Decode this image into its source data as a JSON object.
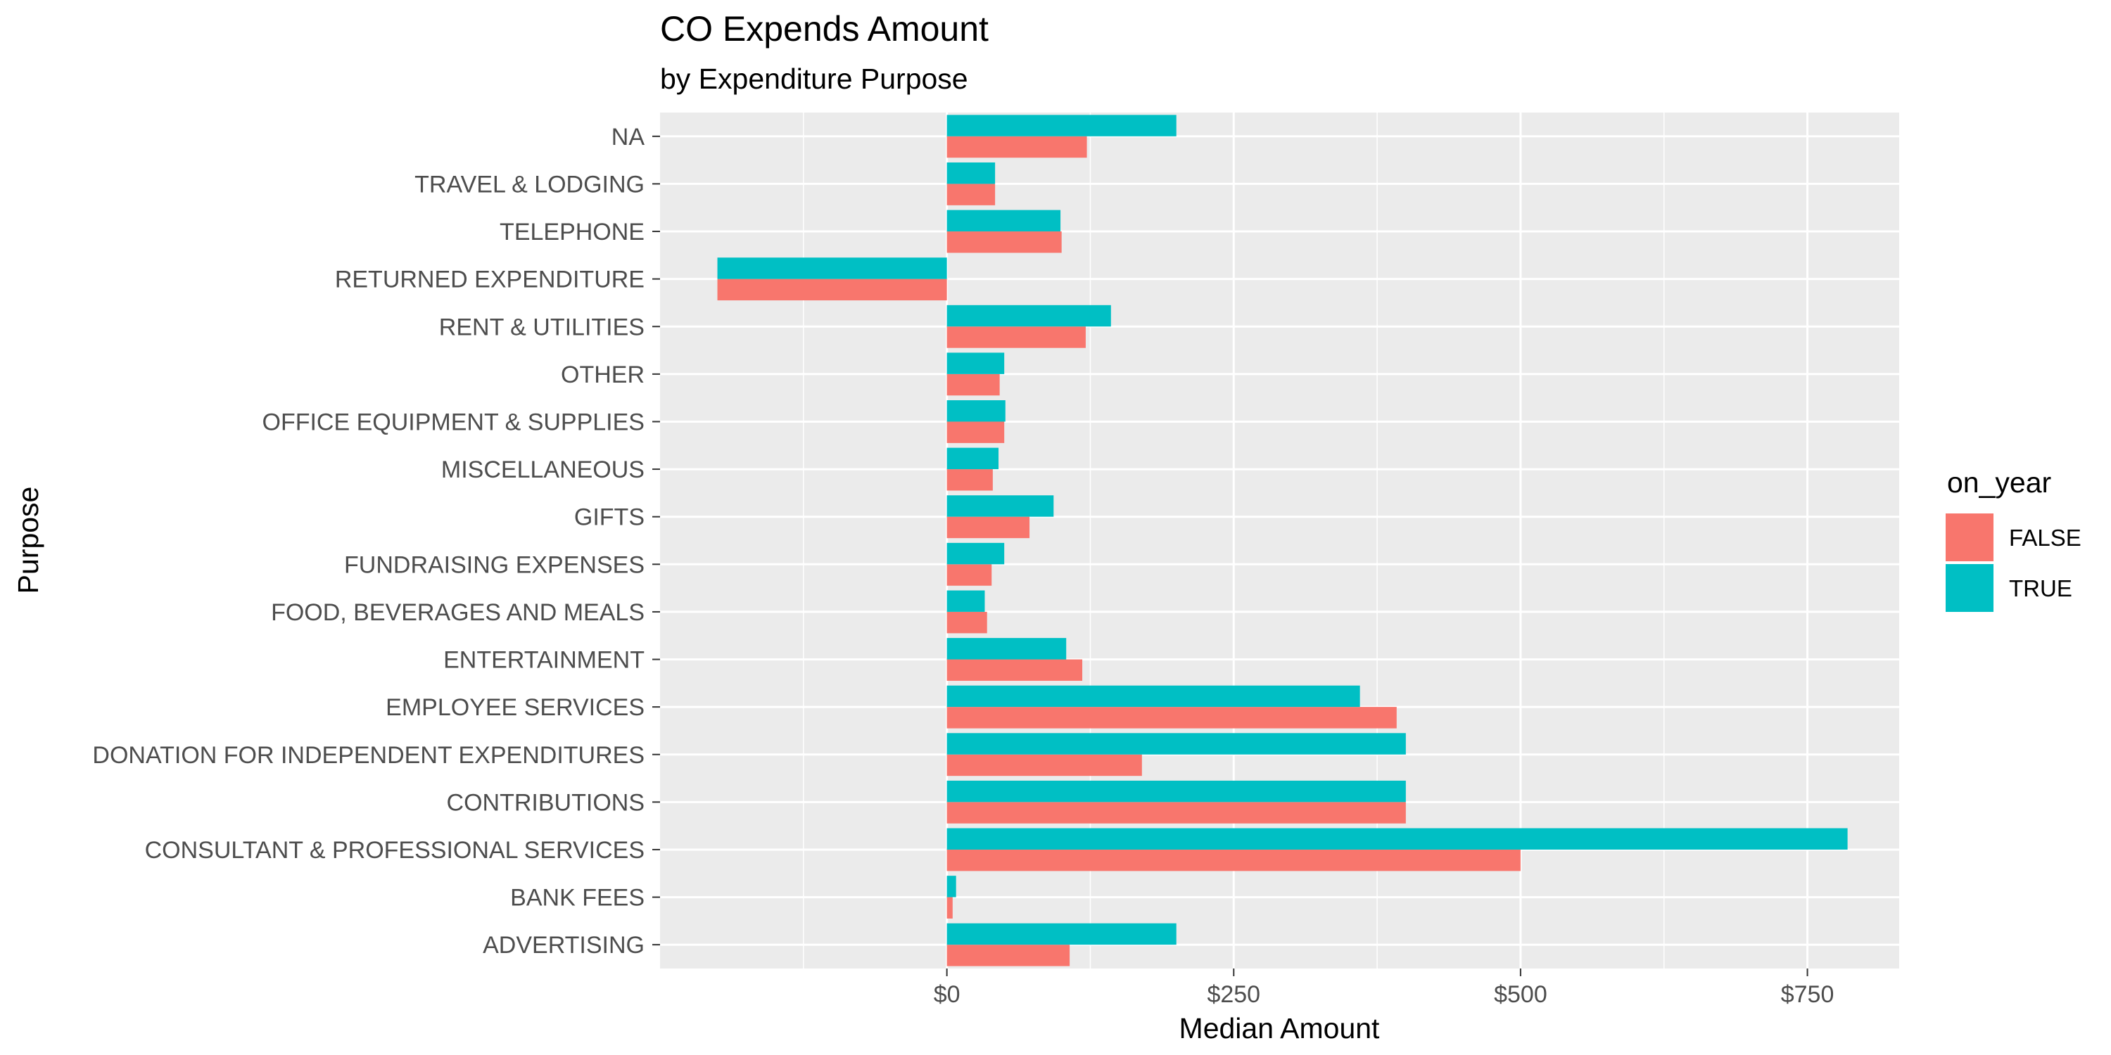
{
  "chart_data": {
    "type": "bar",
    "orientation": "horizontal",
    "title": "CO Expends Amount",
    "subtitle": "by Expenditure Purpose",
    "xlabel": "Median Amount",
    "ylabel": "Purpose",
    "xlim": [
      -250,
      830
    ],
    "x_ticks": [
      0,
      250,
      500,
      750
    ],
    "x_tick_labels": [
      "$0",
      "$250",
      "$500",
      "$750"
    ],
    "categories": [
      "ADVERTISING",
      "BANK FEES",
      "CONSULTANT & PROFESSIONAL SERVICES",
      "CONTRIBUTIONS",
      "DONATION FOR INDEPENDENT EXPENDITURES",
      "EMPLOYEE SERVICES",
      "ENTERTAINMENT",
      "FOOD, BEVERAGES AND MEALS",
      "FUNDRAISING EXPENSES",
      "GIFTS",
      "MISCELLANEOUS",
      "OFFICE EQUIPMENT & SUPPLIES",
      "OTHER",
      "RENT & UTILITIES",
      "RETURNED EXPENDITURE",
      "TELEPHONE",
      "TRAVEL & LODGING",
      "NA"
    ],
    "legend_title": "on_year",
    "legend_position": "right",
    "grid": true,
    "series": [
      {
        "name": "FALSE",
        "color": "#F8766D",
        "values": [
          107,
          5,
          500,
          400,
          170,
          392,
          118,
          35,
          39,
          72,
          40,
          50,
          46,
          121,
          -200,
          100,
          42,
          122
        ]
      },
      {
        "name": "TRUE",
        "color": "#00BFC4",
        "values": [
          200,
          8,
          785,
          400,
          400,
          360,
          104,
          33,
          50,
          93,
          45,
          51,
          50,
          143,
          -200,
          99,
          42,
          200
        ]
      }
    ]
  }
}
